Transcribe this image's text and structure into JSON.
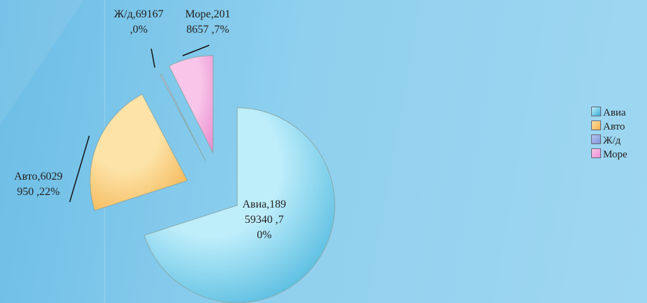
{
  "chart_data": {
    "type": "pie",
    "categories": [
      "Авиа",
      "Авто",
      "Ж/д",
      "Море"
    ],
    "values": [
      18959340,
      6029950,
      69167,
      2018657
    ],
    "value_labels": [
      "Авиа,18959340 ,70%",
      "Авто,6029950 ,22%",
      "Ж/д,69167 ,0%",
      "Море,2018657 ,7%"
    ],
    "colors": [
      "#bfeefb",
      "#fde3a8",
      "#b8c6f0",
      "#f9c6ea"
    ],
    "legend": "right"
  }
}
